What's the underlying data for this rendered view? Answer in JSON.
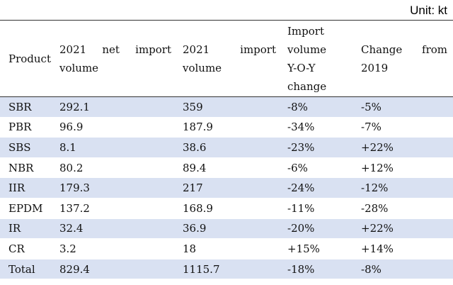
{
  "unit_label": "Unit: kt",
  "headers": {
    "product": "Product",
    "net_import": [
      "2021",
      "net",
      "import"
    ],
    "net_import_line2": "volume",
    "import": [
      "2021",
      "import"
    ],
    "import_line2": "volume",
    "yoy": [
      "Import",
      "volume",
      "Y-O-Y",
      "change"
    ],
    "change": [
      "Change",
      "from"
    ],
    "change_line2": "2019"
  },
  "rows": [
    {
      "product": "SBR",
      "net_import": "292.1",
      "import": "359",
      "yoy": "-8%",
      "change": "-5%"
    },
    {
      "product": "PBR",
      "net_import": "96.9",
      "import": "187.9",
      "yoy": "-34%",
      "change": "-7%"
    },
    {
      "product": "SBS",
      "net_import": "8.1",
      "import": "38.6",
      "yoy": "-23%",
      "change": "+22%"
    },
    {
      "product": "NBR",
      "net_import": "80.2",
      "import": "89.4",
      "yoy": "-6%",
      "change": "+12%"
    },
    {
      "product": "IIR",
      "net_import": "179.3",
      "import": "217",
      "yoy": "-24%",
      "change": "-12%"
    },
    {
      "product": "EPDM",
      "net_import": "137.2",
      "import": "168.9",
      "yoy": "-11%",
      "change": "-28%"
    },
    {
      "product": "IR",
      "net_import": "32.4",
      "import": "36.9",
      "yoy": "-20%",
      "change": "+22%"
    },
    {
      "product": "CR",
      "net_import": "3.2",
      "import": "18",
      "yoy": "+15%",
      "change": "+14%"
    },
    {
      "product": "Total",
      "net_import": "829.4",
      "import": "1115.7",
      "yoy": "-18%",
      "change": "-8%"
    }
  ],
  "colors": {
    "row_shade": "#d9e1f2",
    "rule": "#333333"
  }
}
